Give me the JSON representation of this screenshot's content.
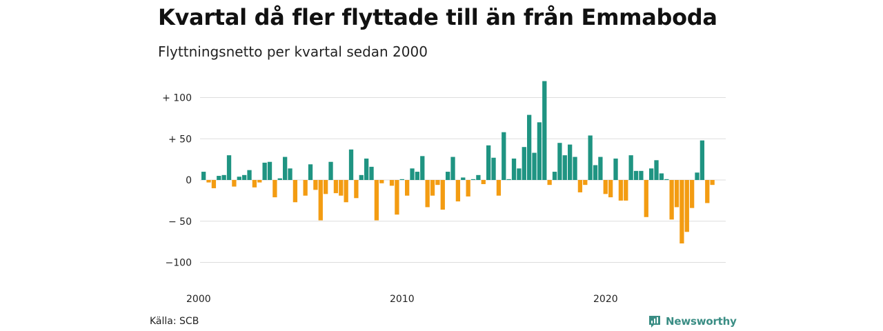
{
  "title": "Kvartal då fler flyttade till än från Emmaboda",
  "subtitle": "Flyttningsnetto per kvartal sedan 2000",
  "source": "Källa: SCB",
  "brand": "Newsworthy",
  "colors": {
    "positive": "#1f9482",
    "negative": "#f39c12",
    "grid": "#dddddd",
    "brand": "#3a8d84"
  },
  "chart_data": {
    "type": "bar",
    "title": "Kvartal då fler flyttade till än från Emmaboda",
    "subtitle": "Flyttningsnetto per kvartal sedan 2000",
    "x_start": "2000 Q1",
    "x_ticks": [
      "2000",
      "2010",
      "2020"
    ],
    "y_ticks": [
      {
        "value": 100,
        "label": "+ 100"
      },
      {
        "value": 50,
        "label": "+  50"
      },
      {
        "value": 0,
        "label": "0"
      },
      {
        "value": -50,
        "label": "− 50"
      },
      {
        "value": -100,
        "label": "−100"
      }
    ],
    "ylim": [
      -110,
      120
    ],
    "grid": true,
    "values": [
      10,
      -3,
      -10,
      5,
      6,
      30,
      -8,
      4,
      6,
      12,
      -9,
      -3,
      21,
      22,
      -21,
      2,
      28,
      14,
      -27,
      0,
      -19,
      19,
      -12,
      -49,
      -17,
      22,
      -16,
      -19,
      -27,
      37,
      -22,
      6,
      26,
      16,
      -49,
      -4,
      0,
      -7,
      -42,
      1,
      -19,
      14,
      10,
      29,
      -33,
      -19,
      -6,
      -36,
      10,
      28,
      -26,
      3,
      -20,
      1,
      6,
      -5,
      42,
      27,
      -19,
      58,
      1,
      26,
      14,
      40,
      79,
      33,
      70,
      120,
      -6,
      10,
      45,
      30,
      43,
      28,
      -15,
      -6,
      54,
      18,
      28,
      -17,
      -21,
      26,
      -25,
      -25,
      30,
      11,
      11,
      -45,
      14,
      24,
      8,
      1,
      -48,
      -33,
      -77,
      -63,
      -34,
      9,
      48,
      -28,
      -6
    ]
  }
}
